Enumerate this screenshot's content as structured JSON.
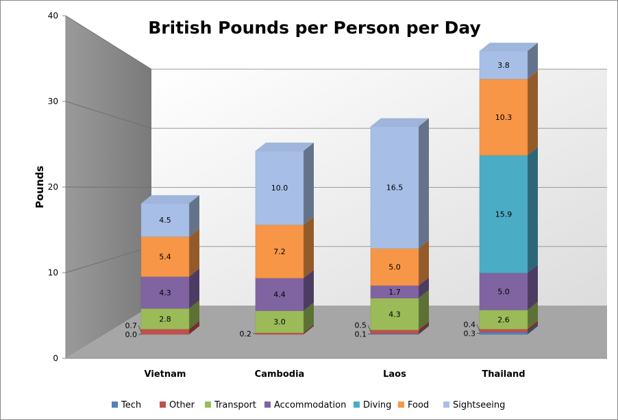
{
  "chart_data": {
    "type": "bar",
    "stacked": true,
    "three_d": true,
    "title": "British Pounds per Person per Day",
    "xlabel": "",
    "ylabel": "Pounds",
    "ylim": [
      0,
      40
    ],
    "yticks": [
      "0",
      "10",
      "20",
      "30",
      "40"
    ],
    "grid": true,
    "legend_position": "bottom",
    "categories": [
      "Vietnam",
      "Cambodia",
      "Laos",
      "Thailand"
    ],
    "series": [
      {
        "name": "Tech",
        "color": "#4f81bd",
        "values": [
          0.0,
          0.0,
          0.1,
          0.3
        ],
        "labels": [
          "0.0",
          "",
          "0.1",
          "0.3"
        ]
      },
      {
        "name": "Other",
        "color": "#c0504d",
        "values": [
          0.7,
          0.2,
          0.5,
          0.4
        ],
        "labels": [
          "0.7",
          "0.2",
          "0.5",
          "0.4"
        ]
      },
      {
        "name": "Transport",
        "color": "#9bbb59",
        "values": [
          2.8,
          3.0,
          4.3,
          2.6
        ],
        "labels": [
          "2.8",
          "3.0",
          "4.3",
          "2.6"
        ]
      },
      {
        "name": "Accommodation",
        "color": "#8064a2",
        "values": [
          4.3,
          4.4,
          1.7,
          5.0
        ],
        "labels": [
          "4.3",
          "4.4",
          "1.7",
          "5.0"
        ]
      },
      {
        "name": "Diving",
        "color": "#4bacc6",
        "values": [
          0,
          0,
          0,
          15.9
        ],
        "labels": [
          "",
          "",
          "",
          "15.9"
        ]
      },
      {
        "name": "Food",
        "color": "#f79646",
        "values": [
          5.4,
          7.2,
          5.0,
          10.3
        ],
        "labels": [
          "5.4",
          "7.2",
          "5.0",
          "10.3"
        ]
      },
      {
        "name": "Sightseeing",
        "color": "#a7bfe6",
        "values": [
          4.5,
          10.0,
          16.5,
          3.8
        ],
        "labels": [
          "4.5",
          "10.0",
          "16.5",
          "3.8"
        ]
      }
    ]
  }
}
